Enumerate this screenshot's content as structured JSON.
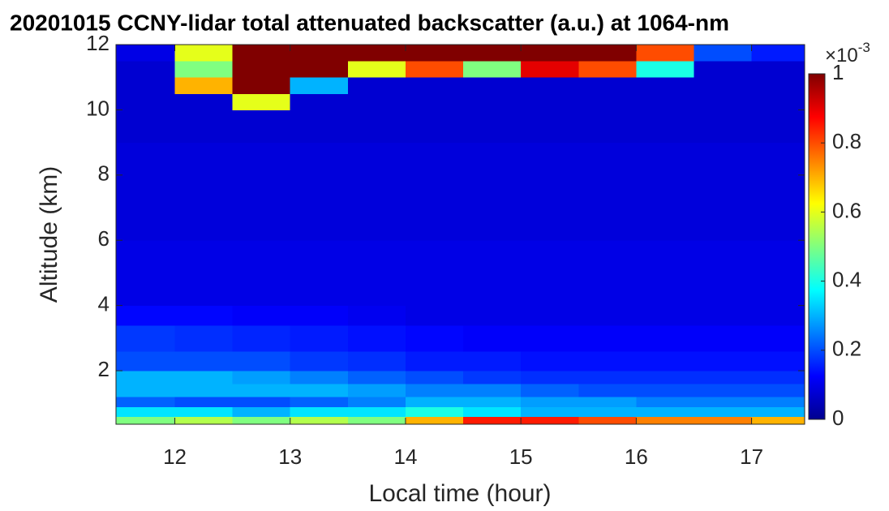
{
  "chart_data": {
    "type": "heatmap",
    "title": "20201015 CCNY-lidar total attenuated backscatter (a.u.) at 1064-nm",
    "xlabel": "Local time (hour)",
    "ylabel": "Altitude (km)",
    "colormap": "jet",
    "xlim": [
      11.49,
      17.46
    ],
    "ylim": [
      0.36,
      12
    ],
    "xticks": [
      12,
      13,
      14,
      15,
      16,
      17
    ],
    "yticks": [
      2,
      4,
      6,
      8,
      10,
      12
    ],
    "xbins": [
      11.49,
      12,
      12.5,
      13,
      13.5,
      14,
      14.5,
      15,
      15.5,
      16,
      16.5,
      17,
      17.46
    ],
    "ybins": [
      0.36,
      0.6,
      0.9,
      1.2,
      1.6,
      2.0,
      2.6,
      3.4,
      4.0,
      6.0,
      9.0,
      10.0,
      10.5,
      11.0,
      11.5,
      12.0
    ],
    "values": [
      [
        0.5,
        0.55,
        0.5,
        0.55,
        0.5,
        0.7,
        0.85,
        0.85,
        0.8,
        0.75,
        0.75,
        0.7
      ],
      [
        0.35,
        0.35,
        0.3,
        0.35,
        0.35,
        0.4,
        0.35,
        0.3,
        0.3,
        0.3,
        0.3,
        0.3
      ],
      [
        0.22,
        0.2,
        0.2,
        0.22,
        0.25,
        0.3,
        0.3,
        0.28,
        0.28,
        0.25,
        0.25,
        0.25
      ],
      [
        0.3,
        0.3,
        0.3,
        0.3,
        0.28,
        0.25,
        0.25,
        0.22,
        0.2,
        0.2,
        0.2,
        0.2
      ],
      [
        0.3,
        0.3,
        0.28,
        0.25,
        0.22,
        0.2,
        0.18,
        0.17,
        0.17,
        0.17,
        0.17,
        0.17
      ],
      [
        0.2,
        0.2,
        0.2,
        0.18,
        0.17,
        0.15,
        0.15,
        0.14,
        0.14,
        0.14,
        0.14,
        0.14
      ],
      [
        0.18,
        0.17,
        0.16,
        0.15,
        0.14,
        0.13,
        0.12,
        0.12,
        0.12,
        0.12,
        0.12,
        0.12
      ],
      [
        0.13,
        0.13,
        0.12,
        0.12,
        0.11,
        0.1,
        0.1,
        0.1,
        0.1,
        0.1,
        0.1,
        0.1
      ],
      [
        0.1,
        0.1,
        0.1,
        0.1,
        0.1,
        0.1,
        0.1,
        0.1,
        0.1,
        0.1,
        0.1,
        0.1
      ],
      [
        0.09,
        0.09,
        0.09,
        0.09,
        0.09,
        0.09,
        0.09,
        0.09,
        0.09,
        0.09,
        0.09,
        0.09
      ],
      [
        0.08,
        0.08,
        0.08,
        0.08,
        0.08,
        0.08,
        0.08,
        0.08,
        0.08,
        0.08,
        0.08,
        0.08
      ],
      [
        0.08,
        0.08,
        0.6,
        0.08,
        0.08,
        0.08,
        0.08,
        0.08,
        0.08,
        0.08,
        0.08,
        0.08
      ],
      [
        0.08,
        0.7,
        1,
        0.3,
        0.08,
        0.08,
        0.08,
        0.08,
        0.08,
        0.08,
        0.08,
        0.08
      ],
      [
        0.08,
        0.5,
        1,
        1,
        0.6,
        0.8,
        0.5,
        0.9,
        0.8,
        0.4,
        0.08,
        0.08
      ],
      [
        0.1,
        0.6,
        1,
        1,
        1,
        1,
        1,
        1,
        1,
        0.8,
        0.2,
        0.15
      ]
    ],
    "clim": [
      0,
      1
    ],
    "cticks": [
      0,
      0.2,
      0.4,
      0.6,
      0.8,
      1
    ],
    "colorbar_label": "×10",
    "colorbar_exponent": "-3"
  }
}
